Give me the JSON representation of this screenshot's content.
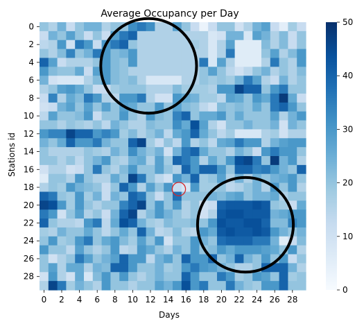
{
  "chart_data": {
    "type": "heatmap",
    "title": "Average Occupancy per Day",
    "xlabel": "Days",
    "ylabel": "Stations id",
    "rows": 30,
    "cols": 30,
    "x_tick_labels": [
      "0",
      "2",
      "4",
      "6",
      "8",
      "10",
      "12",
      "14",
      "16",
      "18",
      "20",
      "22",
      "24",
      "26",
      "28"
    ],
    "y_tick_labels": [
      "0",
      "2",
      "4",
      "6",
      "8",
      "10",
      "12",
      "14",
      "16",
      "18",
      "20",
      "22",
      "24",
      "26",
      "28"
    ],
    "colorbar": {
      "min": 0,
      "max": 50,
      "ticks": [
        "0",
        "10",
        "20",
        "30",
        "40",
        "50"
      ],
      "colormap": "Blues",
      "low_color": "#f7fbff",
      "high_color": "#08306b"
    },
    "values": [
      [
        20,
        16,
        24,
        12,
        20,
        24,
        24,
        16,
        20,
        20,
        32,
        36,
        32,
        16,
        16,
        28,
        20,
        12,
        3,
        12,
        20,
        20,
        10,
        16,
        24,
        28,
        12,
        5,
        18,
        12
      ],
      [
        12,
        24,
        20,
        28,
        20,
        12,
        20,
        12,
        28,
        36,
        40,
        16,
        16,
        16,
        16,
        16,
        16,
        16,
        16,
        8,
        10,
        24,
        24,
        8,
        28,
        24,
        16,
        22,
        12,
        20
      ],
      [
        14,
        16,
        30,
        10,
        36,
        30,
        12,
        30,
        36,
        40,
        20,
        16,
        16,
        16,
        16,
        16,
        16,
        18,
        16,
        8,
        16,
        28,
        6,
        6,
        6,
        22,
        16,
        22,
        12,
        20
      ],
      [
        20,
        16,
        22,
        34,
        20,
        24,
        36,
        30,
        22,
        24,
        30,
        16,
        16,
        16,
        16,
        16,
        16,
        16,
        16,
        8,
        16,
        36,
        6,
        6,
        6,
        20,
        28,
        16,
        22,
        30
      ],
      [
        40,
        28,
        12,
        16,
        16,
        16,
        20,
        30,
        22,
        20,
        30,
        16,
        16,
        16,
        16,
        16,
        16,
        16,
        36,
        8,
        28,
        16,
        6,
        6,
        6,
        16,
        36,
        20,
        16,
        30
      ],
      [
        30,
        22,
        20,
        20,
        26,
        12,
        28,
        30,
        22,
        20,
        16,
        16,
        16,
        16,
        16,
        16,
        16,
        16,
        20,
        28,
        20,
        14,
        10,
        14,
        20,
        24,
        16,
        20,
        16,
        22
      ],
      [
        24,
        10,
        8,
        8,
        8,
        16,
        22,
        30,
        22,
        20,
        22,
        16,
        8,
        8,
        8,
        8,
        16,
        16,
        20,
        18,
        20,
        18,
        24,
        36,
        28,
        16,
        12,
        24,
        16,
        20
      ],
      [
        16,
        20,
        28,
        30,
        26,
        20,
        12,
        12,
        18,
        20,
        20,
        20,
        16,
        16,
        16,
        22,
        18,
        18,
        18,
        16,
        30,
        30,
        46,
        40,
        40,
        20,
        30,
        36,
        20,
        20
      ],
      [
        12,
        34,
        16,
        26,
        22,
        36,
        30,
        16,
        14,
        30,
        30,
        36,
        16,
        10,
        10,
        30,
        26,
        24,
        18,
        18,
        14,
        28,
        26,
        20,
        30,
        26,
        36,
        48,
        26,
        12
      ],
      [
        10,
        12,
        24,
        28,
        20,
        28,
        20,
        28,
        20,
        28,
        26,
        20,
        20,
        30,
        20,
        28,
        22,
        20,
        14,
        10,
        22,
        20,
        22,
        20,
        26,
        20,
        36,
        40,
        30,
        20
      ],
      [
        14,
        28,
        20,
        20,
        22,
        30,
        12,
        20,
        20,
        30,
        20,
        16,
        30,
        22,
        20,
        34,
        40,
        20,
        26,
        26,
        30,
        20,
        26,
        20,
        20,
        20,
        28,
        16,
        24,
        30
      ],
      [
        20,
        20,
        16,
        20,
        18,
        16,
        20,
        14,
        24,
        20,
        16,
        16,
        22,
        20,
        20,
        32,
        26,
        44,
        28,
        16,
        10,
        20,
        20,
        24,
        20,
        20,
        24,
        10,
        24,
        20
      ],
      [
        30,
        34,
        34,
        46,
        40,
        40,
        30,
        34,
        30,
        18,
        22,
        16,
        20,
        24,
        14,
        26,
        30,
        40,
        26,
        20,
        14,
        18,
        8,
        8,
        8,
        16,
        18,
        10,
        16,
        16
      ],
      [
        24,
        20,
        26,
        40,
        30,
        30,
        36,
        24,
        20,
        20,
        40,
        46,
        18,
        12,
        20,
        14,
        30,
        16,
        20,
        14,
        26,
        28,
        36,
        30,
        30,
        16,
        24,
        28,
        30,
        30
      ],
      [
        20,
        16,
        16,
        16,
        16,
        20,
        18,
        16,
        24,
        20,
        32,
        24,
        20,
        24,
        10,
        24,
        36,
        40,
        26,
        20,
        20,
        16,
        24,
        20,
        12,
        30,
        36,
        30,
        30,
        20
      ],
      [
        20,
        20,
        16,
        20,
        14,
        20,
        24,
        30,
        18,
        16,
        24,
        26,
        16,
        28,
        18,
        40,
        36,
        30,
        16,
        26,
        20,
        30,
        44,
        46,
        36,
        20,
        48,
        24,
        30,
        16
      ],
      [
        10,
        16,
        16,
        10,
        12,
        20,
        36,
        20,
        16,
        22,
        30,
        20,
        20,
        28,
        20,
        16,
        40,
        30,
        40,
        40,
        30,
        20,
        40,
        40,
        34,
        36,
        30,
        24,
        20,
        40
      ],
      [
        6,
        20,
        20,
        16,
        30,
        20,
        16,
        16,
        26,
        20,
        46,
        36,
        20,
        14,
        10,
        30,
        24,
        40,
        18,
        20,
        28,
        16,
        24,
        16,
        24,
        20,
        24,
        26,
        30,
        20
      ],
      [
        16,
        20,
        18,
        30,
        24,
        22,
        20,
        12,
        20,
        40,
        30,
        16,
        28,
        20,
        30,
        12,
        8,
        30,
        18,
        18,
        20,
        14,
        16,
        20,
        24,
        16,
        30,
        20,
        30,
        16
      ],
      [
        40,
        36,
        20,
        18,
        30,
        18,
        24,
        12,
        24,
        20,
        40,
        36,
        20,
        12,
        20,
        38,
        20,
        20,
        20,
        24,
        22,
        26,
        28,
        20,
        24,
        24,
        26,
        16,
        20,
        20
      ],
      [
        46,
        44,
        30,
        18,
        30,
        20,
        16,
        20,
        20,
        34,
        40,
        46,
        20,
        30,
        20,
        30,
        16,
        20,
        10,
        12,
        40,
        42,
        42,
        42,
        44,
        42,
        20,
        18,
        12,
        26
      ],
      [
        36,
        30,
        10,
        20,
        28,
        16,
        20,
        12,
        24,
        40,
        46,
        16,
        22,
        30,
        24,
        20,
        16,
        20,
        10,
        16,
        42,
        44,
        44,
        42,
        42,
        42,
        24,
        26,
        30,
        30
      ],
      [
        40,
        20,
        16,
        16,
        14,
        30,
        36,
        14,
        26,
        44,
        40,
        24,
        18,
        16,
        22,
        20,
        20,
        22,
        20,
        30,
        44,
        42,
        42,
        44,
        44,
        40,
        22,
        22,
        34,
        30
      ],
      [
        18,
        16,
        24,
        20,
        20,
        26,
        20,
        14,
        20,
        26,
        20,
        40,
        24,
        14,
        16,
        22,
        16,
        14,
        30,
        26,
        42,
        44,
        42,
        42,
        44,
        42,
        30,
        24,
        20,
        24
      ],
      [
        20,
        30,
        18,
        20,
        30,
        36,
        20,
        26,
        30,
        22,
        18,
        28,
        20,
        30,
        10,
        20,
        20,
        30,
        24,
        20,
        38,
        40,
        40,
        40,
        36,
        36,
        24,
        6,
        12,
        22
      ],
      [
        30,
        20,
        20,
        14,
        28,
        20,
        16,
        20,
        30,
        14,
        16,
        30,
        26,
        20,
        16,
        24,
        20,
        30,
        20,
        22,
        30,
        26,
        30,
        30,
        30,
        28,
        26,
        20,
        30,
        16
      ],
      [
        20,
        10,
        16,
        20,
        36,
        28,
        20,
        24,
        28,
        40,
        30,
        30,
        14,
        24,
        28,
        20,
        40,
        30,
        30,
        40,
        20,
        24,
        40,
        24,
        20,
        30,
        20,
        30,
        12,
        20
      ],
      [
        20,
        28,
        16,
        26,
        26,
        16,
        24,
        22,
        40,
        40,
        30,
        20,
        20,
        24,
        18,
        20,
        30,
        36,
        30,
        28,
        24,
        20,
        16,
        16,
        20,
        40,
        40,
        40,
        24,
        16
      ],
      [
        10,
        30,
        16,
        10,
        26,
        8,
        22,
        30,
        20,
        30,
        20,
        16,
        20,
        24,
        20,
        20,
        40,
        30,
        20,
        20,
        36,
        30,
        18,
        20,
        30,
        28,
        20,
        40,
        18,
        20
      ],
      [
        16,
        46,
        36,
        18,
        24,
        20,
        16,
        30,
        20,
        20,
        16,
        20,
        20,
        28,
        24,
        30,
        44,
        30,
        36,
        20,
        20,
        36,
        24,
        20,
        18,
        30,
        30,
        40,
        20,
        20
      ]
    ],
    "annotations": [
      {
        "shape": "ellipse",
        "cx": 11.8,
        "cy": 4.4,
        "rx": 5.4,
        "ry": 5.3,
        "stroke": "#000000"
      },
      {
        "shape": "ellipse",
        "cx": 22.7,
        "cy": 22.2,
        "rx": 5.4,
        "ry": 5.3,
        "stroke": "#000000"
      },
      {
        "shape": "circle",
        "cx": 15.2,
        "cy": 18.2,
        "r": 0.75,
        "stroke": "#d62728"
      }
    ]
  }
}
